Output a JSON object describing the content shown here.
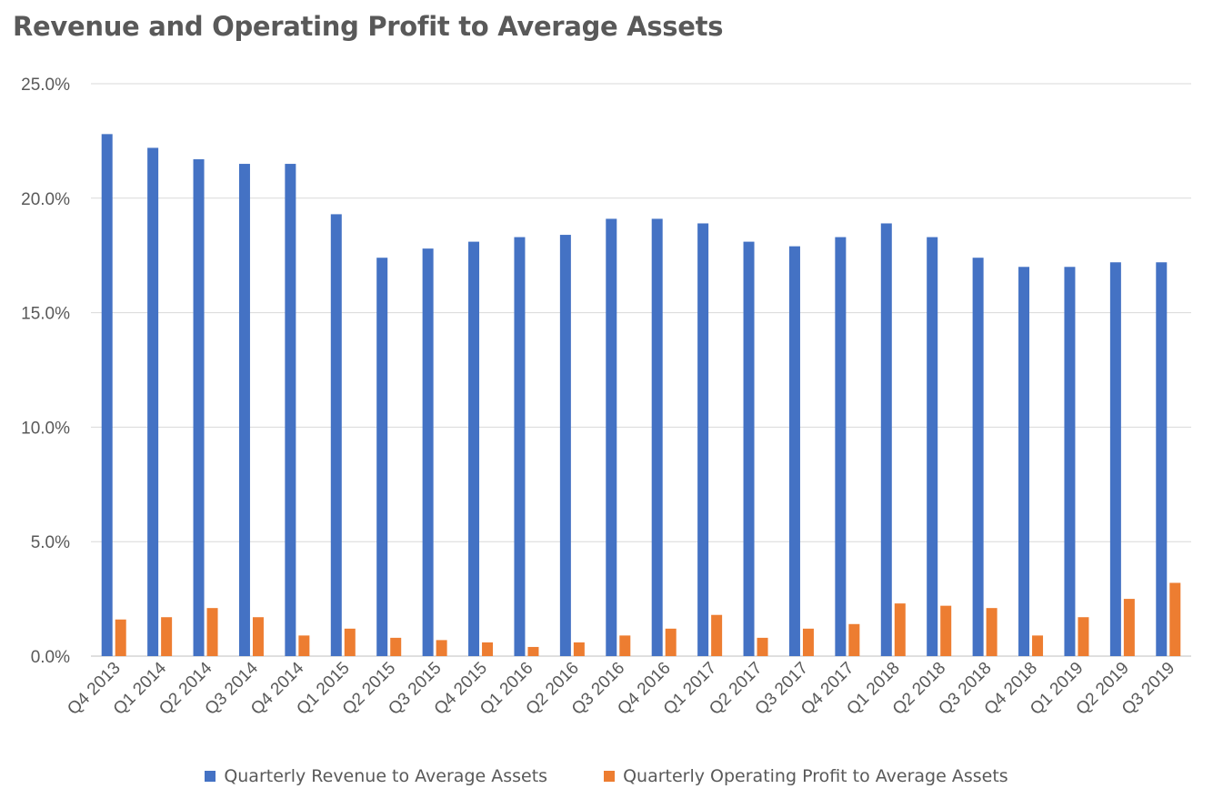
{
  "chart_data": {
    "type": "bar",
    "title": "Revenue and Operating Profit to Average Assets",
    "xlabel": "",
    "ylabel": "",
    "ylim": [
      0,
      25
    ],
    "yticks": [
      "0.0%",
      "5.0%",
      "10.0%",
      "15.0%",
      "20.0%",
      "25.0%"
    ],
    "grid": true,
    "legend_position": "bottom",
    "categories": [
      "Q4 2013",
      "Q1 2014",
      "Q2 2014",
      "Q3 2014",
      "Q4 2014",
      "Q1 2015",
      "Q2 2015",
      "Q3 2015",
      "Q4 2015",
      "Q1 2016",
      "Q2 2016",
      "Q3 2016",
      "Q4 2016",
      "Q1 2017",
      "Q2 2017",
      "Q3 2017",
      "Q4 2017",
      "Q1 2018",
      "Q2 2018",
      "Q3 2018",
      "Q4 2018",
      "Q1 2019",
      "Q2 2019",
      "Q3 2019"
    ],
    "series": [
      {
        "name": "Quarterly Revenue to Average Assets",
        "color": "#4472C4",
        "values": [
          22.8,
          22.2,
          21.7,
          21.5,
          21.5,
          19.3,
          17.4,
          17.8,
          18.1,
          18.3,
          18.4,
          19.1,
          19.1,
          18.9,
          18.1,
          17.9,
          18.3,
          18.9,
          18.3,
          17.4,
          17.0,
          17.0,
          17.2,
          17.2
        ]
      },
      {
        "name": "Quarterly Operating Profit to Average Assets",
        "color": "#ED7D31",
        "values": [
          1.6,
          1.7,
          2.1,
          1.7,
          0.9,
          1.2,
          0.8,
          0.7,
          0.6,
          0.4,
          0.6,
          0.9,
          1.2,
          1.8,
          0.8,
          1.2,
          1.4,
          2.3,
          2.2,
          2.1,
          0.9,
          1.7,
          2.5,
          3.2
        ]
      }
    ]
  }
}
